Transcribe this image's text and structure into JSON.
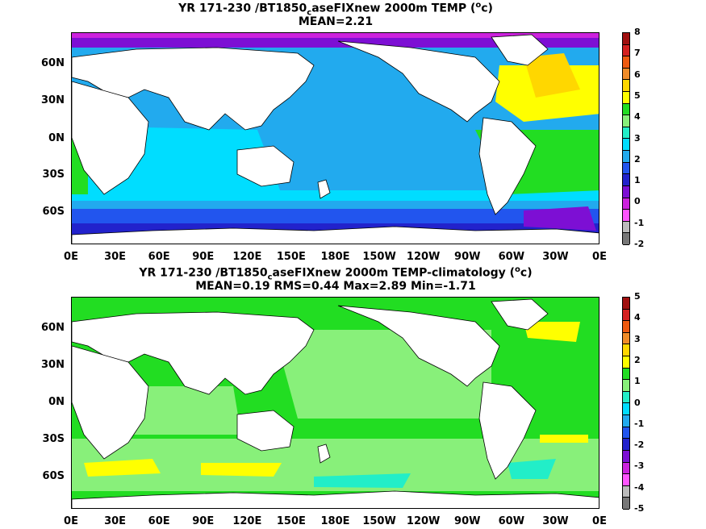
{
  "panels": [
    {
      "title_prefix": "YR 171-230 /BT1850",
      "title_sub": "c",
      "title_suffix": "aseFIXnew 2000m TEMP (",
      "unit_base": "o",
      "unit_rest": "c)",
      "stats": "MEAN=2.21",
      "colorbar": {
        "labels": [
          "8",
          "7",
          "6",
          "5",
          "4",
          "3",
          "2",
          "1",
          "0",
          "-1",
          "-2"
        ],
        "colors": [
          "#a01010",
          "#d42020",
          "#ef5a10",
          "#f08c28",
          "#ffd700",
          "#ffff00",
          "#22dd22",
          "#88f07a",
          "#22eec8",
          "#00ddff",
          "#22aaee",
          "#2255ee",
          "#2222cc",
          "#7d0fd4",
          "#cc22dd",
          "#ff55ff",
          "#bbbbbb",
          "#777777"
        ]
      }
    },
    {
      "title_prefix": "YR 171-230 /BT1850",
      "title_sub": "c",
      "title_suffix": "aseFIXnew 2000m TEMP-climatology (",
      "unit_base": "o",
      "unit_rest": "c)",
      "stats": "MEAN=0.19   RMS=0.44   Max=2.89   Min=-1.71",
      "colorbar": {
        "labels": [
          "5",
          "4",
          "3",
          "2",
          "1",
          "0",
          "-1",
          "-2",
          "-3",
          "-4",
          "-5"
        ],
        "colors": [
          "#a01010",
          "#d42020",
          "#ef5a10",
          "#f08c28",
          "#ffd700",
          "#ffff00",
          "#22dd22",
          "#88f07a",
          "#22eec8",
          "#00ddff",
          "#22aaee",
          "#2255ee",
          "#2222cc",
          "#7d0fd4",
          "#cc22dd",
          "#ff55ff",
          "#bbbbbb",
          "#777777"
        ]
      }
    }
  ],
  "axes": {
    "x_ticks": [
      "0E",
      "30E",
      "60E",
      "90E",
      "120E",
      "150E",
      "180E",
      "150W",
      "120W",
      "90W",
      "60W",
      "30W",
      "0E"
    ],
    "y_ticks": [
      "60N",
      "30N",
      "0N",
      "30S",
      "60S"
    ]
  },
  "colors": {
    "land": "#ffffff",
    "coast": "#000000"
  }
}
